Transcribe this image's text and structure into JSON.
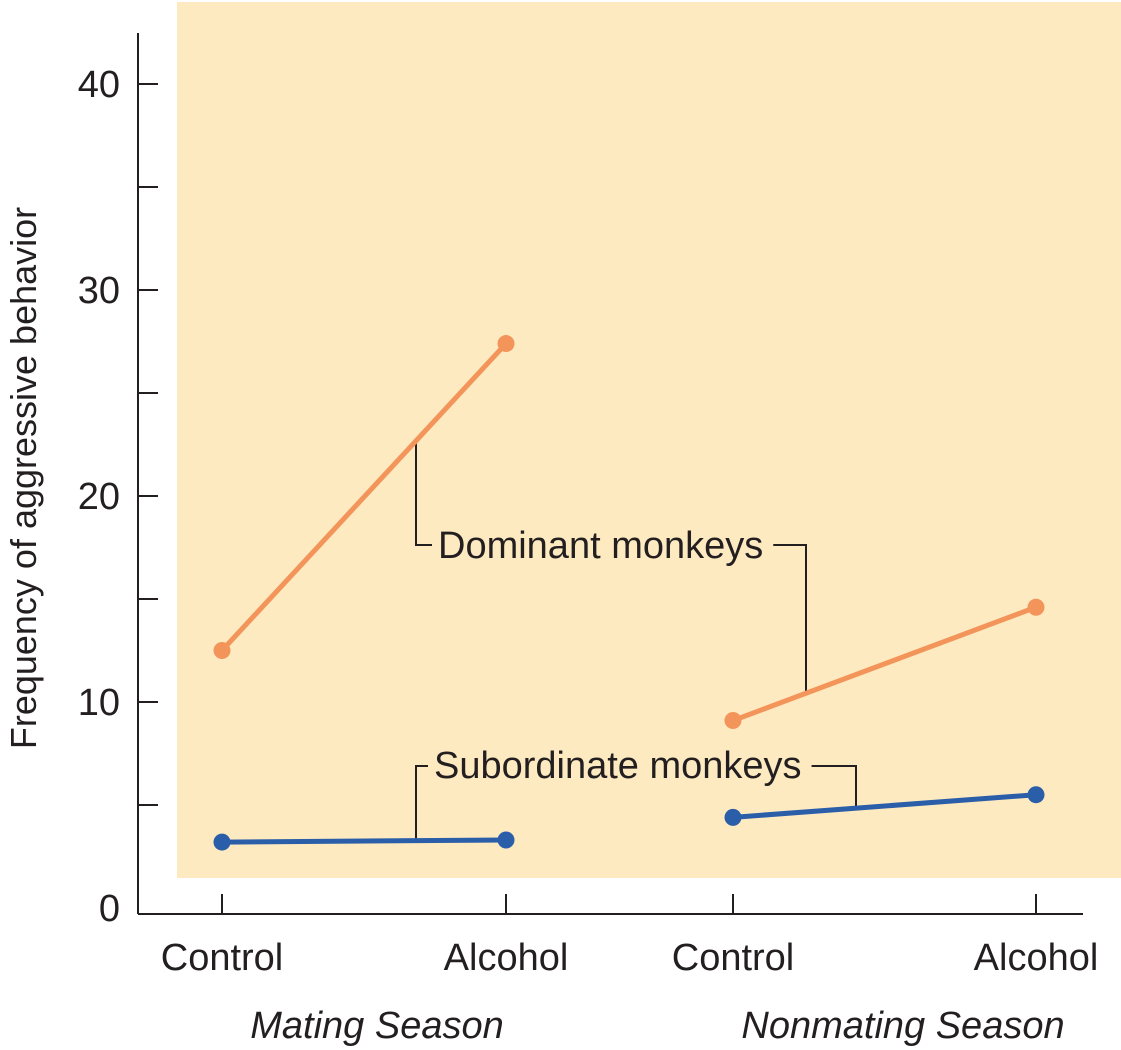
{
  "chart_data": {
    "type": "line",
    "title": "",
    "xlabel": "",
    "ylabel": "Frequency of aggressive behavior",
    "ylim": [
      0,
      42
    ],
    "y_ticks_labeled": [
      0,
      10,
      20,
      30,
      40
    ],
    "y_ticks_minor": [
      5,
      15,
      25,
      35
    ],
    "groups": [
      "Mating Season",
      "Nonmating Season"
    ],
    "categories": [
      "Control",
      "Alcohol",
      "Control",
      "Alcohol"
    ],
    "background_color": "#fdeac0",
    "series": [
      {
        "name": "Dominant monkeys",
        "color": "#f3955a",
        "segments": [
          {
            "group": "Mating Season",
            "values": [
              12.5,
              27.4
            ]
          },
          {
            "group": "Nonmating Season",
            "values": [
              9.1,
              14.6
            ]
          }
        ]
      },
      {
        "name": "Subordinate monkeys",
        "color": "#2a5ea8",
        "segments": [
          {
            "group": "Mating Season",
            "values": [
              3.2,
              3.3
            ]
          },
          {
            "group": "Nonmating Season",
            "values": [
              4.4,
              5.5
            ]
          }
        ]
      }
    ],
    "grid": false,
    "legend": "callout labels"
  }
}
